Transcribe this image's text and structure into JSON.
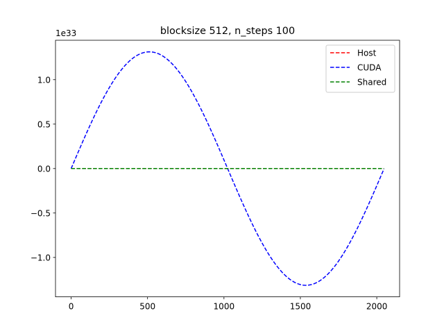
{
  "chart_data": {
    "type": "line",
    "title": "blocksize 512, n_steps 100",
    "xlabel": "",
    "ylabel": "",
    "y_offset_label": "1e33",
    "xlim": [
      -102.35,
      2149.35
    ],
    "ylim": [
      -1.4434,
      1.4434
    ],
    "xticks": [
      0,
      500,
      1000,
      1500,
      2000
    ],
    "xtick_labels": [
      "0",
      "500",
      "1000",
      "1500",
      "2000"
    ],
    "yticks": [
      -1.0,
      -0.5,
      0.0,
      0.5,
      1.0
    ],
    "ytick_labels": [
      "−1.0",
      "−0.5",
      "0.0",
      "0.5",
      "1.0"
    ],
    "grid": false,
    "legend_position": "top-right",
    "series": [
      {
        "name": "Host",
        "color": "#ff0000",
        "linestyle": "dashed",
        "x": [
          0,
          2047
        ],
        "y": [
          0.0,
          0.0
        ]
      },
      {
        "name": "CUDA",
        "color": "#0000ff",
        "linestyle": "dashed",
        "x": [
          0,
          128,
          256,
          384,
          512,
          640,
          768,
          896,
          1024,
          1152,
          1280,
          1408,
          1536,
          1664,
          1792,
          1920,
          2047
        ],
        "y": [
          0.0,
          0.5026,
          0.9287,
          1.2133,
          1.3133,
          1.2133,
          0.9287,
          0.5026,
          0.0,
          -0.5026,
          -0.9287,
          -1.2133,
          -1.3133,
          -1.2133,
          -0.9287,
          -0.5026,
          -0.004
        ]
      },
      {
        "name": "Shared",
        "color": "#008000",
        "linestyle": "dashed",
        "x": [
          0,
          2047
        ],
        "y": [
          0.0,
          0.0
        ]
      }
    ]
  }
}
